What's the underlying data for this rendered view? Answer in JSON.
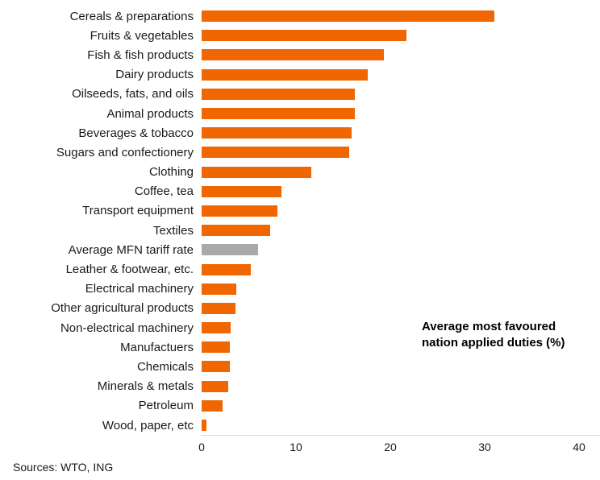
{
  "chart_data": {
    "type": "bar",
    "orientation": "horizontal",
    "categories": [
      "Cereals & preparations",
      "Fruits & vegetables",
      "Fish & fish products",
      "Dairy products",
      "Oilseeds, fats, and oils",
      "Animal products",
      "Beverages & tobacco",
      "Sugars and confectionery",
      "Clothing",
      "Coffee, tea",
      "Transport equipment",
      "Textiles",
      "Average MFN tariff rate",
      "Leather & footwear, etc.",
      "Electrical machinery",
      "Other agricultural products",
      "Non-electrical machinery",
      "Manufactuers",
      "Chemicals",
      "Minerals & metals",
      "Petroleum",
      "Wood, paper, etc"
    ],
    "values": [
      31,
      21.7,
      19.3,
      17.6,
      16.2,
      16.2,
      15.9,
      15.6,
      11.6,
      8.5,
      8.0,
      7.3,
      6.0,
      5.2,
      3.7,
      3.6,
      3.1,
      3.0,
      3.0,
      2.8,
      2.2,
      0.5
    ],
    "highlight_index": 12,
    "bar_color": "#F06600",
    "highlight_color": "#A9A9A9",
    "x_ticks": [
      0,
      10,
      20,
      30,
      40
    ],
    "xlim": [
      0,
      40
    ],
    "grid": false,
    "legend": false,
    "annotation_lines": {
      "0": "Average most favoured",
      "1": "nation applied duties (%)"
    },
    "source": "Sources: WTO, ING"
  }
}
